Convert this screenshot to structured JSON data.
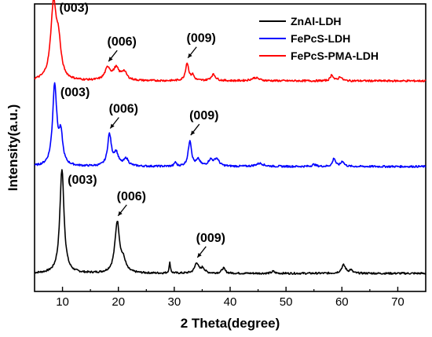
{
  "chart_data": {
    "type": "line",
    "xlabel": "2 Theta(degree)",
    "ylabel": "Intensity(a.u.)",
    "xlim": [
      5,
      75
    ],
    "x_ticks": [
      "10",
      "20",
      "30",
      "40",
      "50",
      "60",
      "70"
    ],
    "y_ticks": "none",
    "grid": false,
    "legend_position": "top-right",
    "series": [
      {
        "name": "ZnAl-LDH",
        "color": "#000000",
        "baseline": 0,
        "peaks": [
          {
            "x": 9.9,
            "h": 1.0,
            "w": 0.45
          },
          {
            "x": 19.8,
            "h": 0.49,
            "w": 0.5
          },
          {
            "x": 20.9,
            "h": 0.1,
            "w": 0.5
          },
          {
            "x": 29.2,
            "h": 0.1,
            "w": 0.15
          },
          {
            "x": 34.0,
            "h": 0.1,
            "w": 0.4
          },
          {
            "x": 35.1,
            "h": 0.05,
            "w": 0.4
          },
          {
            "x": 38.8,
            "h": 0.05,
            "w": 0.35
          },
          {
            "x": 47.7,
            "h": 0.02,
            "w": 0.3
          },
          {
            "x": 60.3,
            "h": 0.08,
            "w": 0.45
          },
          {
            "x": 61.6,
            "h": 0.03,
            "w": 0.3
          }
        ],
        "annotations": [
          {
            "text": "(003)",
            "x": 9.9,
            "arrow": false
          },
          {
            "text": "(006)",
            "x": 19.8,
            "arrow": true
          },
          {
            "text": "(009)",
            "x": 34.0,
            "arrow": true
          }
        ]
      },
      {
        "name": "FePcS-LDH",
        "color": "#0000ff",
        "baseline": 1,
        "peaks": [
          {
            "x": 8.6,
            "h": 0.78,
            "w": 0.45
          },
          {
            "x": 9.7,
            "h": 0.28,
            "w": 0.4
          },
          {
            "x": 18.4,
            "h": 0.3,
            "w": 0.4
          },
          {
            "x": 19.6,
            "h": 0.12,
            "w": 0.5
          },
          {
            "x": 21.4,
            "h": 0.07,
            "w": 0.5
          },
          {
            "x": 30.2,
            "h": 0.04,
            "w": 0.2
          },
          {
            "x": 32.8,
            "h": 0.25,
            "w": 0.35
          },
          {
            "x": 34.3,
            "h": 0.06,
            "w": 0.4
          },
          {
            "x": 36.5,
            "h": 0.06,
            "w": 0.5
          },
          {
            "x": 37.6,
            "h": 0.07,
            "w": 0.5
          },
          {
            "x": 45.3,
            "h": 0.03,
            "w": 0.8
          },
          {
            "x": 55.0,
            "h": 0.02,
            "w": 0.4
          },
          {
            "x": 58.6,
            "h": 0.08,
            "w": 0.3
          },
          {
            "x": 60.1,
            "h": 0.05,
            "w": 0.35
          }
        ],
        "annotations": [
          {
            "text": "(003)",
            "x": 8.6,
            "arrow": false
          },
          {
            "text": "(006)",
            "x": 18.4,
            "arrow": true
          },
          {
            "text": "(009)",
            "x": 32.8,
            "arrow": true
          }
        ]
      },
      {
        "name": "FePcS-PMA-LDH",
        "color": "#ff0000",
        "baseline": 2,
        "peaks": [
          {
            "x": 8.4,
            "h": 0.73,
            "w": 0.6
          },
          {
            "x": 9.3,
            "h": 0.3,
            "w": 0.5
          },
          {
            "x": 18.1,
            "h": 0.12,
            "w": 0.6
          },
          {
            "x": 19.6,
            "h": 0.11,
            "w": 0.6
          },
          {
            "x": 21.0,
            "h": 0.08,
            "w": 0.6
          },
          {
            "x": 32.3,
            "h": 0.17,
            "w": 0.35
          },
          {
            "x": 33.3,
            "h": 0.05,
            "w": 0.3
          },
          {
            "x": 37.0,
            "h": 0.06,
            "w": 0.5
          },
          {
            "x": 44.5,
            "h": 0.03,
            "w": 0.8
          },
          {
            "x": 58.2,
            "h": 0.06,
            "w": 0.3
          },
          {
            "x": 59.7,
            "h": 0.04,
            "w": 0.35
          }
        ],
        "annotations": [
          {
            "text": "(003)",
            "x": 8.4,
            "arrow": false
          },
          {
            "text": "(006)",
            "x": 18.1,
            "arrow": true
          },
          {
            "text": "(009)",
            "x": 32.3,
            "arrow": true
          }
        ]
      }
    ]
  }
}
